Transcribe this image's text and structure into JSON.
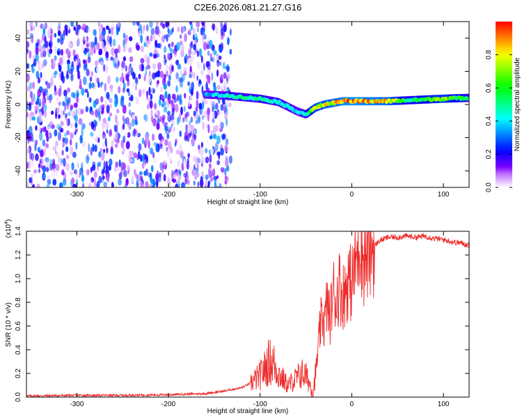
{
  "title": "C2E6.2026.081.21.27.G16",
  "chart_data": [
    {
      "type": "heatmap",
      "xlabel": "Height of straight line (km)",
      "ylabel": "Frequency (Hz)",
      "xlim": [
        -355,
        128
      ],
      "ylim": [
        -50,
        50
      ],
      "xticks": [
        -300,
        -200,
        -100,
        0,
        100
      ],
      "yticks": [
        -40,
        -20,
        0,
        20,
        40
      ],
      "colorbar": {
        "label": "Normalized spectral amplitude",
        "range": [
          0,
          1
        ],
        "ticks": [
          0.0,
          0.2,
          0.4,
          0.6,
          0.8
        ]
      },
      "noise_region": {
        "x_from": -355,
        "x_to": -132,
        "amplitude_max": 0.35
      },
      "trace": {
        "x": [
          -160,
          -140,
          -120,
          -100,
          -80,
          -60,
          -50,
          -40,
          -30,
          -20,
          -10,
          0,
          20,
          40,
          60,
          80,
          100,
          128
        ],
        "frequency": [
          6,
          5.5,
          4.5,
          3.5,
          1.5,
          -4,
          -6,
          -2,
          0,
          1,
          2,
          2,
          2,
          2,
          2.5,
          3,
          3.5,
          4
        ],
        "amplitude": [
          0.35,
          0.45,
          0.5,
          0.5,
          0.45,
          0.4,
          0.5,
          0.75,
          0.8,
          0.85,
          0.9,
          0.95,
          0.9,
          0.85,
          0.55,
          0.6,
          0.75,
          0.5
        ]
      }
    },
    {
      "type": "line",
      "xlabel": "Height of straight line (km)",
      "ylabel": "SNR (10 * v/v)",
      "scale_label": "(x10",
      "scale_exp": "4",
      "xlim": [
        -355,
        128
      ],
      "ylim": [
        0,
        1.4
      ],
      "xticks": [
        -300,
        -200,
        -100,
        0,
        100
      ],
      "yticks": [
        0.0,
        0.2,
        0.4,
        0.6,
        0.8,
        1.0,
        1.2,
        1.4
      ],
      "ytick_labels": [
        "0.0",
        "0.2",
        "0.4",
        "0.6",
        "0.8",
        "1.0",
        "1.2",
        "1.4"
      ],
      "color": "#ee2b2b",
      "series": [
        {
          "name": "SNR",
          "x": [
            -355,
            -300,
            -250,
            -200,
            -160,
            -140,
            -120,
            -110,
            -100,
            -95,
            -90,
            -85,
            -80,
            -75,
            -70,
            -65,
            -60,
            -55,
            -50,
            -45,
            -42,
            -38,
            -35,
            -32,
            -30,
            -27,
            -24,
            -20,
            -17,
            -14,
            -10,
            -7,
            -4,
            0,
            3,
            6,
            9,
            11,
            13,
            16,
            20,
            25,
            30,
            40,
            50,
            60,
            70,
            80,
            90,
            100,
            110,
            120,
            128
          ],
          "y": [
            0.01,
            0.015,
            0.015,
            0.02,
            0.03,
            0.05,
            0.08,
            0.12,
            0.18,
            0.24,
            0.3,
            0.28,
            0.2,
            0.15,
            0.1,
            0.13,
            0.16,
            0.2,
            0.18,
            0.1,
            0.05,
            0.3,
            0.55,
            0.7,
            0.6,
            0.8,
            0.65,
            0.9,
            0.8,
            0.95,
            0.85,
            0.9,
            1.0,
            0.95,
            1.1,
            1.2,
            1.35,
            1.25,
            1.15,
            1.2,
            1.25,
            1.28,
            1.32,
            1.35,
            1.35,
            1.36,
            1.35,
            1.36,
            1.34,
            1.33,
            1.31,
            1.3,
            1.28
          ]
        }
      ]
    }
  ]
}
